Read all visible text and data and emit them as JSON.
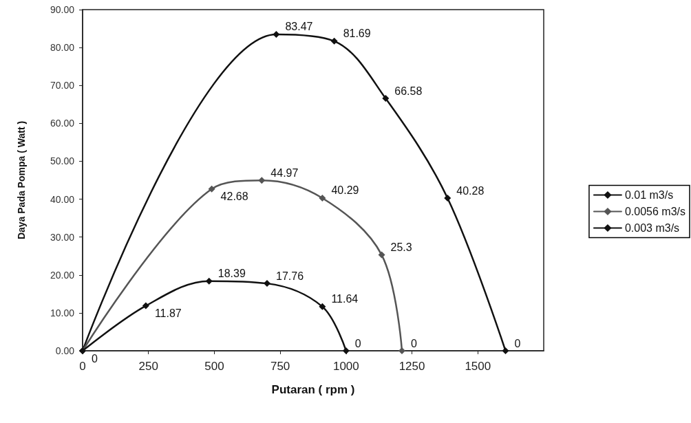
{
  "chart_data": {
    "type": "line",
    "xlabel": "Putaran ( rpm )",
    "ylabel": "Daya Pada Pompa ( Watt )",
    "xlim": [
      0,
      1750
    ],
    "xticks": [
      0,
      250,
      500,
      750,
      1000,
      1250,
      1500
    ],
    "ylim": [
      0,
      90
    ],
    "yticks": [
      {
        "value": 0,
        "label": "0.00"
      },
      {
        "value": 10,
        "label": "10.00"
      },
      {
        "value": 20,
        "label": "20.00"
      },
      {
        "value": 30,
        "label": "30.00"
      },
      {
        "value": 40,
        "label": "40.00"
      },
      {
        "value": 50,
        "label": "50.00"
      },
      {
        "value": 60,
        "label": "60.00"
      },
      {
        "value": 70,
        "label": "70.00"
      },
      {
        "value": 80,
        "label": "80.00"
      },
      {
        "value": 90,
        "label": "90.00"
      }
    ],
    "series": [
      {
        "name": "0.01 m3/s",
        "color": "#111111",
        "x": [
          0,
          735,
          955,
          1150,
          1385,
          1605
        ],
        "values": [
          0,
          83.47,
          81.69,
          66.58,
          40.28,
          0
        ],
        "value_labels": [
          "0",
          "83.47",
          "81.69",
          "66.58",
          "40.28",
          "0"
        ]
      },
      {
        "name": "0.0056 m3/s",
        "color": "#555555",
        "x": [
          0,
          490,
          680,
          910,
          1135,
          1212
        ],
        "values": [
          0,
          42.68,
          44.97,
          40.29,
          25.3,
          0
        ],
        "value_labels": [
          null,
          "42.68",
          "44.97",
          "40.29",
          "25.3",
          "0"
        ]
      },
      {
        "name": "0.003 m3/s",
        "color": "#111111",
        "x": [
          0,
          240,
          480,
          700,
          910,
          1000
        ],
        "values": [
          0,
          11.87,
          18.39,
          17.76,
          11.64,
          0
        ],
        "value_labels": [
          null,
          "11.87",
          "18.39",
          "17.76",
          "11.64",
          "0"
        ]
      }
    ],
    "marker": "diamond",
    "line_style": "solid",
    "legend": "right",
    "grid": false
  }
}
